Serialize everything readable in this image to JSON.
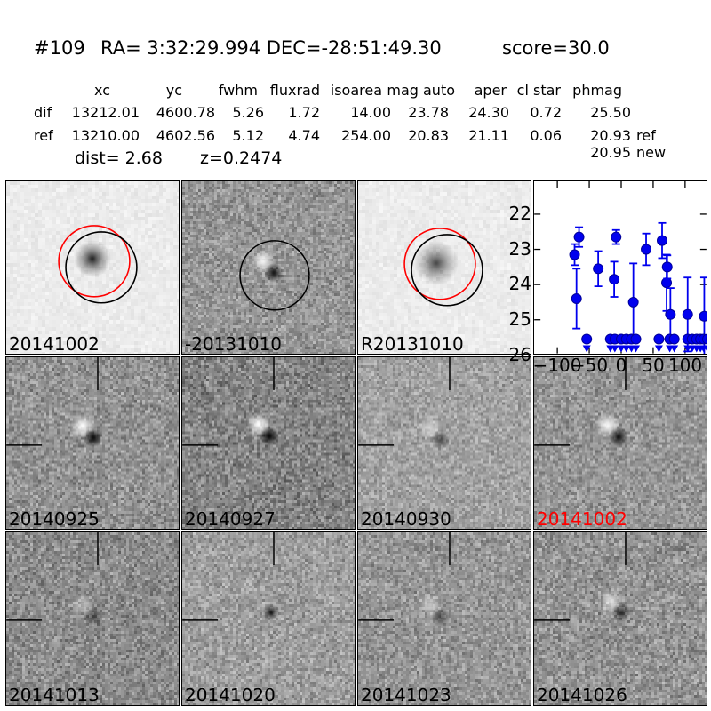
{
  "header": {
    "id": "#109",
    "coords": "RA= 3:32:29.994 DEC=-28:51:49.30",
    "score": "score=30.0"
  },
  "photometry_table": {
    "columns": [
      "xc",
      "yc",
      "fwhm",
      "fluxrad",
      "isoarea",
      "mag auto",
      "aper",
      "cl star",
      "phmag"
    ],
    "rows": [
      {
        "label": "dif",
        "values": [
          "13212.01",
          "4600.78",
          "5.26",
          "1.72",
          "14.00",
          "23.78",
          "24.30",
          "0.72",
          "25.50"
        ],
        "note": ""
      },
      {
        "label": "ref",
        "values": [
          "13210.00",
          "4602.56",
          "5.12",
          "4.74",
          "254.00",
          "20.83",
          "21.11",
          "0.06",
          "20.93"
        ],
        "note": "ref"
      },
      {
        "label": "",
        "values": [
          "",
          "",
          "",
          "",
          "",
          "",
          "",
          "",
          "20.95"
        ],
        "note": "new"
      }
    ],
    "dist": "dist=  2.68",
    "redshift": "z=0.2474"
  },
  "stamps": [
    {
      "label": "20141002",
      "label_color": "#000000",
      "kind": "new",
      "circles": [
        "#ff0000",
        "#000000"
      ]
    },
    {
      "label": "-20131010",
      "label_color": "#000000",
      "kind": "diff-circle",
      "circles": [
        "#000000"
      ]
    },
    {
      "label": "R20131010",
      "label_color": "#000000",
      "kind": "ref",
      "circles": [
        "#ff0000",
        "#000000"
      ]
    },
    {
      "label": "",
      "label_color": "#000000",
      "kind": "plot",
      "circles": []
    },
    {
      "label": "20140925",
      "label_color": "#000000",
      "kind": "diff",
      "circles": []
    },
    {
      "label": "20140927",
      "label_color": "#000000",
      "kind": "diff",
      "circles": []
    },
    {
      "label": "20140930",
      "label_color": "#000000",
      "kind": "diff",
      "circles": []
    },
    {
      "label": "20141002",
      "label_color": "#ff0000",
      "kind": "diff",
      "circles": []
    },
    {
      "label": "20141013",
      "label_color": "#000000",
      "kind": "diff",
      "circles": []
    },
    {
      "label": "20141020",
      "label_color": "#000000",
      "kind": "diff",
      "circles": []
    },
    {
      "label": "20141023",
      "label_color": "#000000",
      "kind": "diff",
      "circles": []
    },
    {
      "label": "20141026",
      "label_color": "#000000",
      "kind": "diff",
      "circles": []
    }
  ],
  "chart_data": {
    "type": "scatter",
    "title": "",
    "xlabel": "",
    "ylabel": "",
    "xlim": [
      -136,
      133
    ],
    "ylim": [
      26.0,
      21.07
    ],
    "y_inverted": true,
    "xticks": [
      -100,
      -50,
      0,
      50,
      100
    ],
    "xtick_labels": [
      "−100",
      "−50",
      "0",
      "50",
      "100"
    ],
    "yticks": [
      22,
      23,
      24,
      25,
      26
    ],
    "ytick_labels": [
      "22",
      "23",
      "24",
      "25",
      "26"
    ],
    "marker_color": "#0000ee",
    "marker_edge_color": "#000099",
    "series": [
      {
        "name": "detections",
        "points": [
          {
            "x": -73,
            "mag": 23.15,
            "err": 0.3
          },
          {
            "x": -66,
            "mag": 22.65,
            "err": 0.28
          },
          {
            "x": -70,
            "mag": 24.4,
            "err": 0.85
          },
          {
            "x": -36,
            "mag": 23.55,
            "err": 0.5
          },
          {
            "x": -11,
            "mag": 23.85,
            "err": 0.5
          },
          {
            "x": -8,
            "mag": 22.65,
            "err": 0.2
          },
          {
            "x": 19,
            "mag": 24.5,
            "err": 1.1
          },
          {
            "x": 39,
            "mag": 23.0,
            "err": 0.45
          },
          {
            "x": 64,
            "mag": 22.75,
            "err": 0.5
          },
          {
            "x": 71,
            "mag": 23.95,
            "err": 0.8
          },
          {
            "x": 72,
            "mag": 23.5,
            "err": 0.33
          },
          {
            "x": 77,
            "mag": 24.85,
            "err": 0.75
          },
          {
            "x": 104,
            "mag": 24.85,
            "err": 1.05
          },
          {
            "x": 130,
            "mag": 24.9,
            "err": 1.1
          }
        ]
      },
      {
        "name": "upper_limits",
        "mag": 25.55,
        "x": [
          -54,
          -17,
          -10,
          0,
          8,
          16,
          23,
          59,
          76,
          83,
          104,
          111,
          118,
          124,
          129,
          135,
          141
        ]
      }
    ]
  }
}
